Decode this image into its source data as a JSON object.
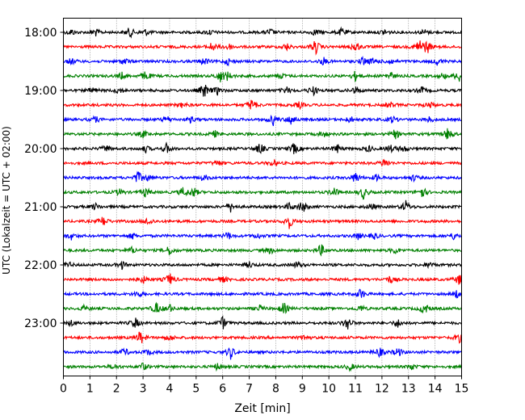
{
  "chart_data": {
    "type": "line",
    "title": "",
    "xlabel": "Zeit  [min]",
    "ylabel": "UTC (Lokalzeit = UTC + 02:00)",
    "xlim": [
      0,
      15
    ],
    "x_ticks": [
      0,
      1,
      2,
      3,
      4,
      5,
      6,
      7,
      8,
      9,
      10,
      11,
      12,
      13,
      14,
      15
    ],
    "grid": "vertical dotted",
    "colors_cycle": [
      "#000000",
      "#ff0000",
      "#0000ff",
      "#008000"
    ],
    "y_tick_labels": [
      {
        "label": "18:00",
        "row": 0
      },
      {
        "label": "19:00",
        "row": 4
      },
      {
        "label": "20:00",
        "row": 8
      },
      {
        "label": "21:00",
        "row": 12
      },
      {
        "label": "22:00",
        "row": 16
      },
      {
        "label": "23:00",
        "row": 20
      }
    ],
    "series": [
      {
        "start": "18:00",
        "color": "#000000",
        "events": [
          [
            0.3,
            0.8
          ],
          [
            1.2,
            1.0
          ],
          [
            2.5,
            1.3
          ],
          [
            3.1,
            0.8
          ],
          [
            5.5,
            0.7
          ],
          [
            7.8,
            0.9
          ],
          [
            9.5,
            0.8
          ],
          [
            10.5,
            1.1
          ],
          [
            12.1,
            0.8
          ],
          [
            13.6,
            0.7
          ]
        ]
      },
      {
        "start": "18:15",
        "color": "#ff0000",
        "events": [
          [
            5.6,
            1.2
          ],
          [
            6.2,
            1.0
          ],
          [
            8.4,
            0.9
          ],
          [
            9.5,
            1.8
          ],
          [
            11.0,
            1.5
          ],
          [
            13.4,
            2.0
          ],
          [
            13.7,
            1.6
          ]
        ]
      },
      {
        "start": "18:30",
        "color": "#0000ff",
        "events": [
          [
            0.3,
            0.8
          ],
          [
            2.3,
            0.9
          ],
          [
            5.3,
            1.0
          ],
          [
            6.2,
            0.8
          ],
          [
            9.8,
            0.9
          ],
          [
            11.3,
            1.1
          ],
          [
            11.7,
            0.9
          ],
          [
            12.3,
            0.8
          ],
          [
            14.1,
            0.9
          ]
        ]
      },
      {
        "start": "18:45",
        "color": "#008000",
        "events": [
          [
            2.2,
            0.8
          ],
          [
            3.1,
            1.3
          ],
          [
            5.9,
            1.5
          ],
          [
            6.2,
            1.0
          ],
          [
            8.2,
            0.8
          ],
          [
            11.0,
            1.2
          ],
          [
            12.3,
            1.2
          ],
          [
            14.3,
            0.8
          ],
          [
            14.9,
            1.5
          ]
        ]
      },
      {
        "start": "19:00",
        "color": "#000000",
        "events": [
          [
            1.1,
            0.8
          ],
          [
            2.1,
            0.8
          ],
          [
            5.3,
            2.0
          ],
          [
            5.8,
            1.0
          ],
          [
            8.4,
            0.9
          ],
          [
            9.4,
            1.3
          ],
          [
            11.0,
            0.9
          ],
          [
            13.5,
            0.9
          ]
        ]
      },
      {
        "start": "19:15",
        "color": "#ff0000",
        "events": [
          [
            4.5,
            0.7
          ],
          [
            7.1,
            1.6
          ],
          [
            8.9,
            0.8
          ],
          [
            12.3,
            0.8
          ],
          [
            13.8,
            0.8
          ]
        ]
      },
      {
        "start": "19:30",
        "color": "#0000ff",
        "events": [
          [
            1.2,
            0.8
          ],
          [
            3.9,
            0.9
          ],
          [
            4.8,
            0.7
          ],
          [
            7.9,
            1.4
          ],
          [
            8.6,
            1.6
          ],
          [
            10.8,
            0.8
          ],
          [
            12.4,
            0.9
          ],
          [
            13.8,
            0.7
          ]
        ]
      },
      {
        "start": "19:45",
        "color": "#008000",
        "events": [
          [
            3.0,
            0.9
          ],
          [
            5.7,
            0.8
          ],
          [
            9.8,
            0.8
          ],
          [
            12.5,
            1.2
          ],
          [
            14.5,
            1.8
          ]
        ]
      },
      {
        "start": "20:00",
        "color": "#000000",
        "events": [
          [
            1.6,
            0.9
          ],
          [
            3.1,
            0.8
          ],
          [
            3.9,
            1.3
          ],
          [
            7.4,
            1.4
          ],
          [
            8.7,
            1.5
          ],
          [
            10.3,
            1.2
          ],
          [
            11.5,
            0.8
          ],
          [
            12.3,
            1.0
          ],
          [
            12.8,
            0.9
          ]
        ]
      },
      {
        "start": "20:15",
        "color": "#ff0000",
        "events": [
          [
            5.8,
            0.8
          ],
          [
            7.9,
            0.8
          ],
          [
            12.1,
            1.2
          ]
        ]
      },
      {
        "start": "20:30",
        "color": "#0000ff",
        "events": [
          [
            2.8,
            1.6
          ],
          [
            3.2,
            0.8
          ],
          [
            5.3,
            0.8
          ],
          [
            11.0,
            1.5
          ],
          [
            11.8,
            0.8
          ],
          [
            13.2,
            0.8
          ]
        ]
      },
      {
        "start": "20:45",
        "color": "#008000",
        "events": [
          [
            2.1,
            0.8
          ],
          [
            3.1,
            1.2
          ],
          [
            4.5,
            1.1
          ],
          [
            4.9,
            1.3
          ],
          [
            10.2,
            1.2
          ],
          [
            11.3,
            1.6
          ],
          [
            13.5,
            1.5
          ]
        ]
      },
      {
        "start": "21:00",
        "color": "#000000",
        "events": [
          [
            1.2,
            0.8
          ],
          [
            6.3,
            1.2
          ],
          [
            8.5,
            0.8
          ],
          [
            9.0,
            1.6
          ],
          [
            11.6,
            0.9
          ],
          [
            12.9,
            1.4
          ]
        ]
      },
      {
        "start": "21:15",
        "color": "#ff0000",
        "events": [
          [
            1.5,
            1.3
          ],
          [
            3.2,
            1.1
          ],
          [
            8.5,
            1.8
          ]
        ]
      },
      {
        "start": "21:30",
        "color": "#0000ff",
        "events": [
          [
            0.3,
            0.8
          ],
          [
            2.6,
            0.8
          ],
          [
            6.2,
            1.0
          ],
          [
            7.3,
            0.7
          ],
          [
            11.1,
            0.8
          ],
          [
            11.7,
            0.8
          ],
          [
            14.7,
            0.8
          ]
        ]
      },
      {
        "start": "21:45",
        "color": "#008000",
        "events": [
          [
            2.6,
            0.8
          ],
          [
            4.0,
            1.2
          ],
          [
            7.8,
            0.8
          ],
          [
            9.7,
            1.5
          ],
          [
            12.5,
            0.8
          ]
        ]
      },
      {
        "start": "22:00",
        "color": "#000000",
        "events": [
          [
            0.2,
            0.7
          ],
          [
            2.2,
            1.0
          ],
          [
            7.0,
            0.8
          ],
          [
            8.8,
            0.8
          ],
          [
            13.8,
            0.8
          ]
        ]
      },
      {
        "start": "22:15",
        "color": "#ff0000",
        "events": [
          [
            3.0,
            0.9
          ],
          [
            4.0,
            1.6
          ],
          [
            6.0,
            0.8
          ],
          [
            12.3,
            0.9
          ],
          [
            14.9,
            1.3
          ]
        ]
      },
      {
        "start": "22:30",
        "color": "#0000ff",
        "events": [
          [
            2.8,
            0.8
          ],
          [
            11.2,
            1.4
          ],
          [
            14.8,
            1.0
          ]
        ]
      },
      {
        "start": "22:45",
        "color": "#008000",
        "events": [
          [
            0.8,
            0.8
          ],
          [
            3.5,
            1.5
          ],
          [
            4.0,
            1.0
          ],
          [
            7.4,
            0.8
          ],
          [
            8.3,
            1.5
          ],
          [
            11.2,
            0.8
          ],
          [
            13.6,
            1.5
          ]
        ]
      },
      {
        "start": "23:00",
        "color": "#000000",
        "events": [
          [
            0.3,
            0.7
          ],
          [
            2.7,
            1.3
          ],
          [
            6.0,
            1.6
          ],
          [
            10.7,
            1.8
          ],
          [
            12.6,
            1.0
          ]
        ]
      },
      {
        "start": "23:15",
        "color": "#ff0000",
        "events": [
          [
            2.9,
            1.8
          ],
          [
            4.0,
            0.7
          ],
          [
            9.1,
            0.8
          ],
          [
            14.9,
            1.2
          ]
        ]
      },
      {
        "start": "23:30",
        "color": "#0000ff",
        "events": [
          [
            2.3,
            1.0
          ],
          [
            3.2,
            0.8
          ],
          [
            6.3,
            1.6
          ],
          [
            11.9,
            1.2
          ],
          [
            12.6,
            1.2
          ]
        ]
      },
      {
        "start": "23:45",
        "color": "#008000",
        "events": [
          [
            1.9,
            0.7
          ],
          [
            3.0,
            1.0
          ],
          [
            5.8,
            0.8
          ],
          [
            10.8,
            0.9
          ],
          [
            13.1,
            0.8
          ]
        ]
      }
    ]
  }
}
